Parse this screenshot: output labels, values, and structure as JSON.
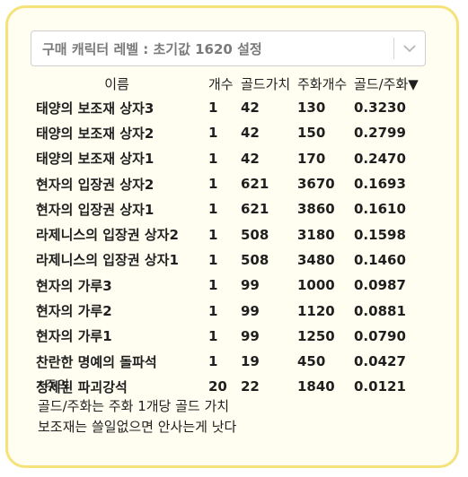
{
  "select": {
    "value": "구매 캐릭터 레벨 : 초기값 1620 설정",
    "chevron_icon": "chevron-down-icon"
  },
  "table": {
    "headers": {
      "name": "이름",
      "count": "개수",
      "gold": "골드가치",
      "coin": "주화개수",
      "ratio": "골드/주화▼"
    },
    "rows": [
      {
        "name": "태양의 보조재 상자3",
        "count": "1",
        "gold": "42",
        "coin": "130",
        "ratio": "0.3230"
      },
      {
        "name": "태양의 보조재 상자2",
        "count": "1",
        "gold": "42",
        "coin": "150",
        "ratio": "0.2799"
      },
      {
        "name": "태양의 보조재 상자1",
        "count": "1",
        "gold": "42",
        "coin": "170",
        "ratio": "0.2470"
      },
      {
        "name": "현자의 입장권 상자2",
        "count": "1",
        "gold": "621",
        "coin": "3670",
        "ratio": "0.1693"
      },
      {
        "name": "현자의 입장권 상자1",
        "count": "1",
        "gold": "621",
        "coin": "3860",
        "ratio": "0.1610"
      },
      {
        "name": "라제니스의 입장권 상자2",
        "count": "1",
        "gold": "508",
        "coin": "3180",
        "ratio": "0.1598"
      },
      {
        "name": "라제니스의 입장권 상자1",
        "count": "1",
        "gold": "508",
        "coin": "3480",
        "ratio": "0.1460"
      },
      {
        "name": "현자의 가루3",
        "count": "1",
        "gold": "99",
        "coin": "1000",
        "ratio": "0.0987"
      },
      {
        "name": "현자의 가루2",
        "count": "1",
        "gold": "99",
        "coin": "1120",
        "ratio": "0.0881"
      },
      {
        "name": "현자의 가루1",
        "count": "1",
        "gold": "99",
        "coin": "1250",
        "ratio": "0.0790"
      },
      {
        "name": "찬란한 명예의 돌파석",
        "count": "1",
        "gold": "19",
        "coin": "450",
        "ratio": "0.0427"
      },
      {
        "name": "정제된 파괴강석",
        "count": "20",
        "gold": "22",
        "coin": "1840",
        "ratio": "0.0121"
      }
    ]
  },
  "notes": [
    "*주의",
    "골드/주화는 주화 1개당 골드 가치",
    "보조재는 쓸일없으면 안사는게 낫다"
  ],
  "colors": {
    "card_border": "#f6e27a",
    "card_background": "#fffef0",
    "select_text": "#7a7a7a"
  }
}
